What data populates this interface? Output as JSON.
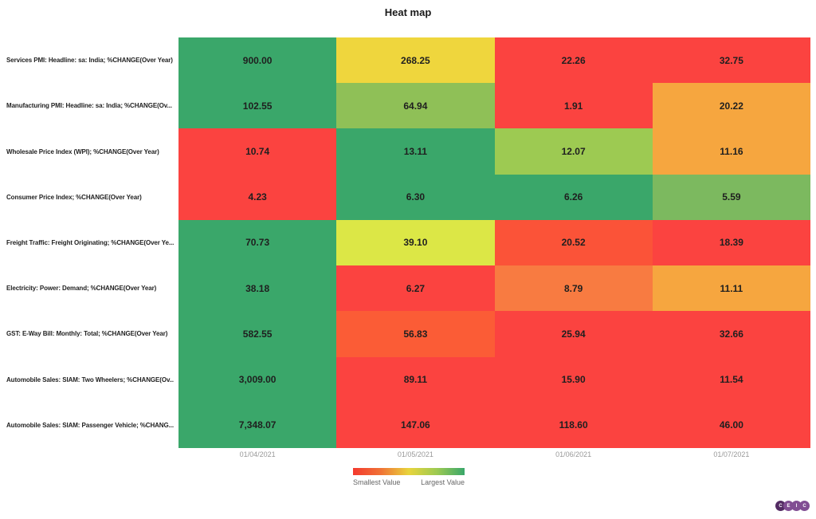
{
  "chart_data": {
    "type": "heatmap",
    "title": "Heat map",
    "columns": [
      "01/04/2021",
      "01/05/2021",
      "01/06/2021",
      "01/07/2021"
    ],
    "rows": [
      {
        "label": "Services PMI: Headline: sa: India; %CHANGE(Over Year)",
        "values": [
          900.0,
          268.25,
          22.26,
          32.75
        ],
        "display": [
          "900.00",
          "268.25",
          "22.26",
          "32.75"
        ],
        "colors": [
          "#3AA76A",
          "#EFD63D",
          "#FB4340",
          "#FB4340"
        ]
      },
      {
        "label": "Manufacturing PMI: Headline: sa: India; %CHANGE(Ov...",
        "values": [
          102.55,
          64.94,
          1.91,
          20.22
        ],
        "display": [
          "102.55",
          "64.94",
          "1.91",
          "20.22"
        ],
        "colors": [
          "#3AA76A",
          "#8FC057",
          "#FB4340",
          "#F6A63F"
        ]
      },
      {
        "label": "Wholesale Price Index (WPI); %CHANGE(Over Year)",
        "values": [
          10.74,
          13.11,
          12.07,
          11.16
        ],
        "display": [
          "10.74",
          "13.11",
          "12.07",
          "11.16"
        ],
        "colors": [
          "#FB4340",
          "#3AA76A",
          "#9DCA52",
          "#F6A63F"
        ]
      },
      {
        "label": "Consumer Price Index; %CHANGE(Over Year)",
        "values": [
          4.23,
          6.3,
          6.26,
          5.59
        ],
        "display": [
          "4.23",
          "6.30",
          "6.26",
          "5.59"
        ],
        "colors": [
          "#FB4340",
          "#3AA76A",
          "#3AA76A",
          "#7CB95F"
        ]
      },
      {
        "label": "Freight Traffic: Freight Originating; %CHANGE(Over Ye...",
        "values": [
          70.73,
          39.1,
          20.52,
          18.39
        ],
        "display": [
          "70.73",
          "39.10",
          "20.52",
          "18.39"
        ],
        "colors": [
          "#3AA76A",
          "#DCE746",
          "#FB5338",
          "#FB4340"
        ]
      },
      {
        "label": "Electricity: Power: Demand; %CHANGE(Over Year)",
        "values": [
          38.18,
          6.27,
          8.79,
          11.11
        ],
        "display": [
          "38.18",
          "6.27",
          "8.79",
          "11.11"
        ],
        "colors": [
          "#3AA76A",
          "#FB4340",
          "#F87B41",
          "#F6A63F"
        ]
      },
      {
        "label": "GST: E-Way Bill: Monthly: Total; %CHANGE(Over Year)",
        "values": [
          582.55,
          56.83,
          25.94,
          32.66
        ],
        "display": [
          "582.55",
          "56.83",
          "25.94",
          "32.66"
        ],
        "colors": [
          "#3AA76A",
          "#FB5C36",
          "#FB4340",
          "#FB4340"
        ]
      },
      {
        "label": "Automobile Sales: SIAM: Two Wheelers; %CHANGE(Ov...",
        "values": [
          3009.0,
          89.11,
          15.9,
          11.54
        ],
        "display": [
          "3,009.00",
          "89.11",
          "15.90",
          "11.54"
        ],
        "colors": [
          "#3AA76A",
          "#FB4340",
          "#FB4340",
          "#FB4340"
        ]
      },
      {
        "label": "Automobile Sales: SIAM: Passenger Vehicle; %CHANG...",
        "values": [
          7348.07,
          147.06,
          118.6,
          46.0
        ],
        "display": [
          "7,348.07",
          "147.06",
          "118.60",
          "46.00"
        ],
        "colors": [
          "#3AA76A",
          "#FB4340",
          "#FB4340",
          "#FB4340"
        ]
      }
    ],
    "legend": {
      "smallest_label": "Smallest Value",
      "largest_label": "Largest Value",
      "gradient": [
        "#F4392E",
        "#F07336",
        "#E8D43C",
        "#9DCA52",
        "#3AA76A"
      ]
    },
    "grid": false,
    "legend_position": "bottom-center"
  },
  "logo": {
    "letters": [
      "C",
      "E",
      "I",
      "C"
    ],
    "first_circle_color": "#532B63",
    "circle_color": "#814E93"
  }
}
